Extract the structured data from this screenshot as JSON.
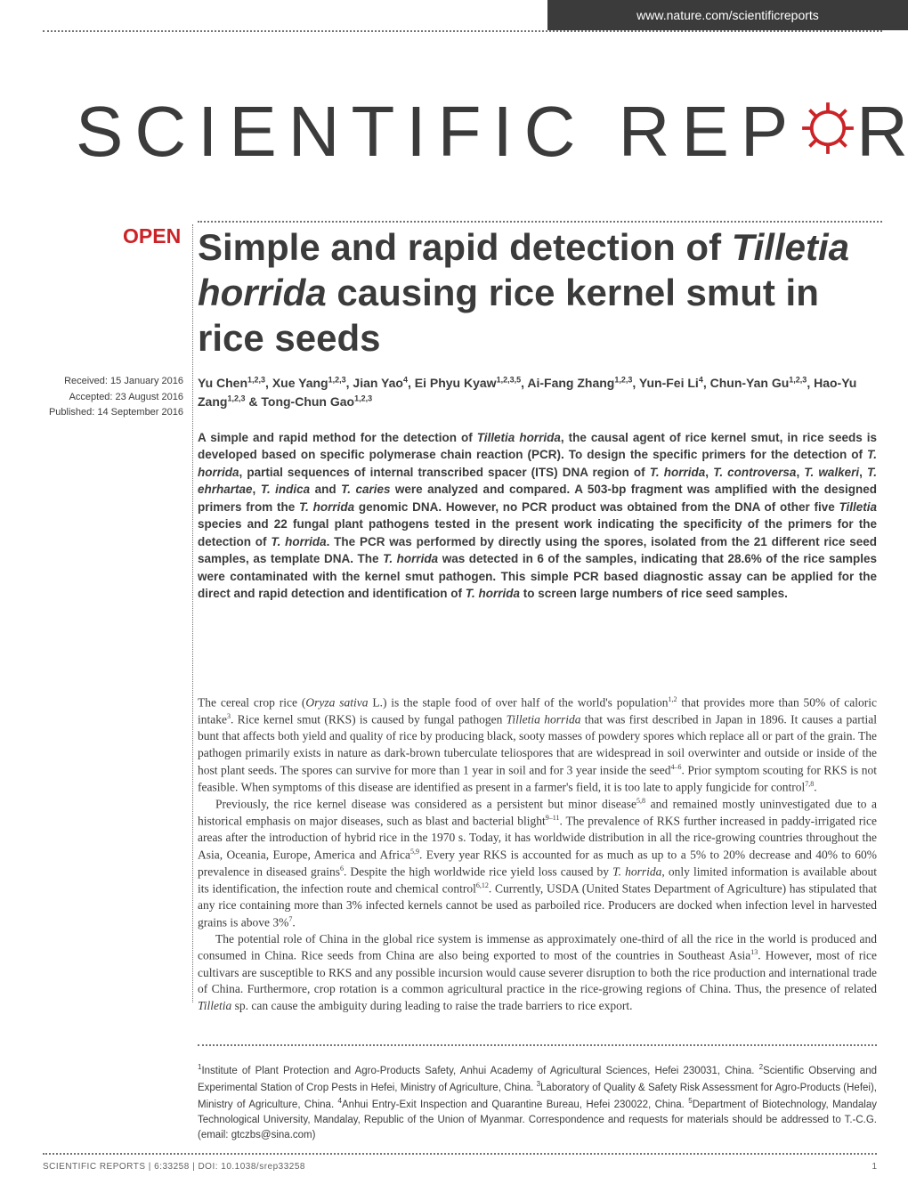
{
  "header": {
    "url": "www.nature.com/scientificreports",
    "journal_name": "SCIENTIFIC REP RTS",
    "open_label": "OPEN"
  },
  "article": {
    "title_html": "Simple and rapid detection of <em>Tilletia horrida</em> causing rice kernel smut in rice seeds",
    "authors_html": "Yu Chen<sup>1,2,3</sup>, Xue Yang<sup>1,2,3</sup>, Jian Yao<sup>4</sup>, Ei Phyu Kyaw<sup>1,2,3,5</sup>, Ai-Fang Zhang<sup>1,2,3</sup>, Yun-Fei Li<sup>4</sup>, Chun-Yan Gu<sup>1,2,3</sup>, Hao-Yu Zang<sup>1,2,3</sup> & Tong-Chun Gao<sup>1,2,3</sup>",
    "received": "Received: 15 January 2016",
    "accepted": "Accepted: 23 August 2016",
    "published": "Published: 14 September 2016",
    "abstract_html": "A simple and rapid method for the detection of <em>Tilletia horrida</em>, the causal agent of rice kernel smut, in rice seeds is developed based on specific polymerase chain reaction (PCR). To design the specific primers for the detection of <em>T. horrida</em>, partial sequences of internal transcribed spacer (ITS) DNA region of <em>T. horrida</em>, <em>T. controversa</em>, <em>T. walkeri</em>, <em>T. ehrhartae</em>, <em>T. indica</em> and <em>T. caries</em> were analyzed and compared. A 503-bp fragment was amplified with the designed primers from the <em>T. horrida</em> genomic DNA. However, no PCR product was obtained from the DNA of other five <em>Tilletia</em> species and 22 fungal plant pathogens tested in the present work indicating the specificity of the primers for the detection of <em>T. horrida</em>. The PCR was performed by directly using the spores, isolated from the 21 different rice seed samples, as template DNA. The <em>T. horrida</em> was detected in 6 of the samples, indicating that 28.6% of the rice samples were contaminated with the kernel smut pathogen. This simple PCR based diagnostic assay can be applied for the direct and rapid detection and identification of <em>T. horrida</em> to screen large numbers of rice seed samples.",
    "body_p1_html": "The cereal crop rice (<em>Oryza sativa</em> L.) is the staple food of over half of the world's population<sup>1,2</sup> that provides more than 50% of caloric intake<sup>3</sup>. Rice kernel smut (RKS) is caused by fungal pathogen <em>Tilletia horrida</em> that was first described in Japan in 1896. It causes a partial bunt that affects both yield and quality of rice by producing black, sooty masses of powdery spores which replace all or part of the grain. The pathogen primarily exists in nature as dark-brown tuberculate teliospores that are widespread in soil overwinter and outside or inside of the host plant seeds. The spores can survive for more than 1 year in soil and for 3 year inside the seed<sup>4–6</sup>. Prior symptom scouting for RKS is not feasible. When symptoms of this disease are identified as present in a farmer's field, it is too late to apply fungicide for control<sup>7,8</sup>.",
    "body_p2_html": "Previously, the rice kernel disease was considered as a persistent but minor disease<sup>5,8</sup> and remained mostly uninvestigated due to a historical emphasis on major diseases, such as blast and bacterial blight<sup>9–11</sup>. The prevalence of RKS further increased in paddy-irrigated rice areas after the introduction of hybrid rice in the 1970 s. Today, it has worldwide distribution in all the rice-growing countries throughout the Asia, Oceania, Europe, America and Africa<sup>5,9</sup>. Every year RKS is accounted for as much as up to a 5% to 20% decrease and 40% to 60% prevalence in diseased grains<sup>6</sup>. Despite the high worldwide rice yield loss caused by <em>T. horrida</em>, only limited information is available about its identification, the infection route and chemical control<sup>6,12</sup>. Currently, USDA (United States Department of Agriculture) has stipulated that any rice containing more than 3% infected kernels cannot be used as parboiled rice. Producers are docked when infection level in harvested grains is above 3%<sup>7</sup>.",
    "body_p3_html": "The potential role of China in the global rice system is immense as approximately one-third of all the rice in the world is produced and consumed in China. Rice seeds from China are also being exported to most of the countries in Southeast Asia<sup>13</sup>. However, most of rice cultivars are susceptible to RKS and any possible incursion would cause severer disruption to both the rice production and international trade of China. Furthermore, crop rotation is a common agricultural practice in the rice-growing regions of China. Thus, the presence of related <em>Tilletia</em> sp. can cause the ambiguity during leading to raise the trade barriers to rice export.",
    "affiliations_html": "<sup>1</sup>Institute of Plant Protection and Agro-Products Safety, Anhui Academy of Agricultural Sciences, Hefei 230031, China. <sup>2</sup>Scientific Observing and Experimental Station of Crop Pests in Hefei, Ministry of Agriculture, China. <sup>3</sup>Laboratory of Quality & Safety Risk Assessment for Agro-Products (Hefei), Ministry of Agriculture, China. <sup>4</sup>Anhui Entry-Exit Inspection and Quarantine Bureau, Hefei 230022, China. <sup>5</sup>Department of Biotechnology, Mandalay Technological University, Mandalay, Republic of the Union of Myanmar. Correspondence and requests for materials should be addressed to T.-C.G. (email: gtczbs@sina.com)"
  },
  "footer": {
    "citation": "SCIENTIFIC REPORTS | 6:33258 | DOI: 10.1038/srep33258",
    "page": "1"
  },
  "colors": {
    "header_bg": "#3b3b3b",
    "text": "#3b3b3b",
    "accent": "#cb2327",
    "footer_text": "#626262",
    "dotted": "#727272"
  }
}
